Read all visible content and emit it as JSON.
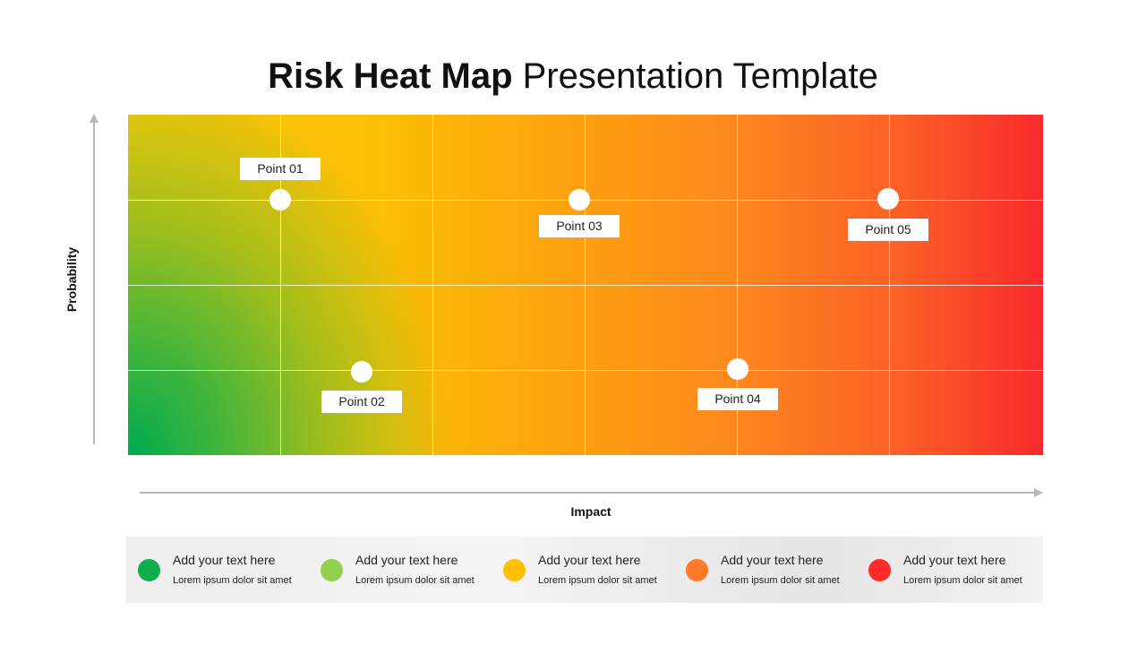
{
  "title": {
    "bold": "Risk Heat Map",
    "light": "Presentation Template"
  },
  "axes": {
    "y_label": "Probability",
    "x_label": "Impact"
  },
  "points": [
    {
      "label": "Point 01"
    },
    {
      "label": "Point 02"
    },
    {
      "label": "Point 03"
    },
    {
      "label": "Point 04"
    },
    {
      "label": "Point 05"
    }
  ],
  "legend": [
    {
      "title": "Add your text here",
      "subtitle": "Lorem ipsum dolor sit amet",
      "color": "#0fad4e"
    },
    {
      "title": "Add your text here",
      "subtitle": "Lorem ipsum dolor sit amet",
      "color": "#92d050"
    },
    {
      "title": "Add your text here",
      "subtitle": "Lorem ipsum dolor sit amet",
      "color": "#ffc000"
    },
    {
      "title": "Add your text here",
      "subtitle": "Lorem ipsum dolor sit amet",
      "color": "#ff7a28"
    },
    {
      "title": "Add your text here",
      "subtitle": "Lorem ipsum dolor sit amet",
      "color": "#ff2a2a"
    }
  ],
  "colors": {
    "axis": "#b8b8b8",
    "low": "#0fad4e",
    "high": "#f9292b"
  }
}
